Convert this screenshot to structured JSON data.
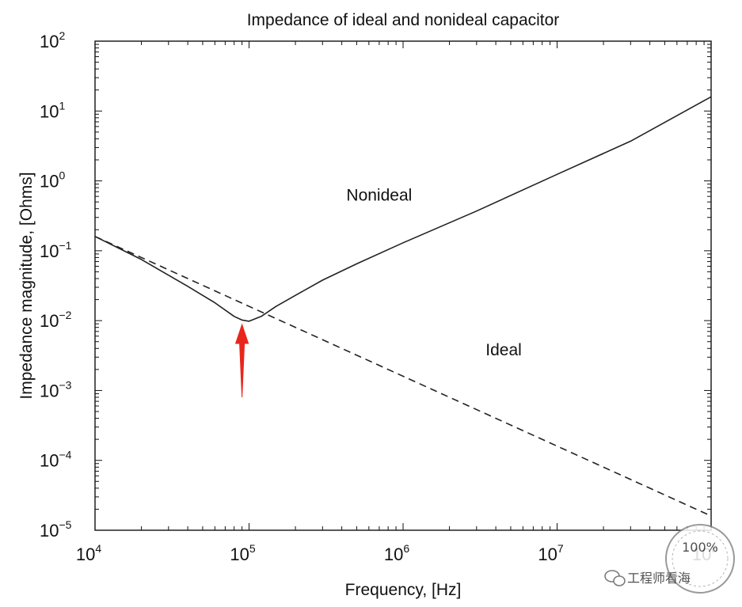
{
  "chart_data": {
    "type": "line",
    "title": "Impedance of ideal and nonideal capacitor",
    "xlabel": "Frequency, [Hz]",
    "ylabel": "Impedance magnitude, [Ohms]",
    "x_scale": "log",
    "y_scale": "log",
    "xlim": [
      10000,
      100000000
    ],
    "ylim": [
      1e-05,
      100
    ],
    "x_ticks": [
      {
        "value": 10000,
        "base": "10",
        "exp": "4"
      },
      {
        "value": 100000,
        "base": "10",
        "exp": "5"
      },
      {
        "value": 1000000,
        "base": "10",
        "exp": "6"
      },
      {
        "value": 10000000,
        "base": "10",
        "exp": "7"
      },
      {
        "value": 100000000,
        "base": "10",
        "exp": "8"
      }
    ],
    "y_ticks": [
      {
        "value": 1e-05,
        "base": "10",
        "exp": "−5"
      },
      {
        "value": 0.0001,
        "base": "10",
        "exp": "−4"
      },
      {
        "value": 0.001,
        "base": "10",
        "exp": "−3"
      },
      {
        "value": 0.01,
        "base": "10",
        "exp": "−2"
      },
      {
        "value": 0.1,
        "base": "10",
        "exp": "−1"
      },
      {
        "value": 1,
        "base": "10",
        "exp": "0"
      },
      {
        "value": 10,
        "base": "10",
        "exp": "1"
      },
      {
        "value": 100,
        "base": "10",
        "exp": "2"
      }
    ],
    "grid": false,
    "series": [
      {
        "name": "Nonideal",
        "style": "solid",
        "color": "#222222",
        "x": [
          10000,
          20000,
          40000,
          60000,
          80000,
          90000,
          100000,
          120000,
          150000,
          200000,
          300000,
          500000,
          1000000,
          3000000,
          10000000,
          30000000,
          100000000
        ],
        "y": [
          0.16,
          0.075,
          0.031,
          0.018,
          0.0115,
          0.0102,
          0.0098,
          0.0115,
          0.016,
          0.023,
          0.038,
          0.065,
          0.13,
          0.37,
          1.24,
          3.7,
          16
        ]
      },
      {
        "name": "Ideal",
        "style": "dashed",
        "color": "#222222",
        "x": [
          10000,
          100000000
        ],
        "y": [
          0.16,
          1.6e-05
        ]
      }
    ],
    "annotations": [
      {
        "text": "Nonideal",
        "x": 700000,
        "y": 0.52
      },
      {
        "text": "Ideal",
        "x": 4500000,
        "y": 0.0032
      }
    ],
    "marker": {
      "type": "arrow",
      "color": "#e8261c",
      "x": 90000,
      "y_tip": 0.0088,
      "y_tail": 0.0008
    }
  },
  "watermark": {
    "channel_name": "工程师看海",
    "badge_text": "100%"
  }
}
